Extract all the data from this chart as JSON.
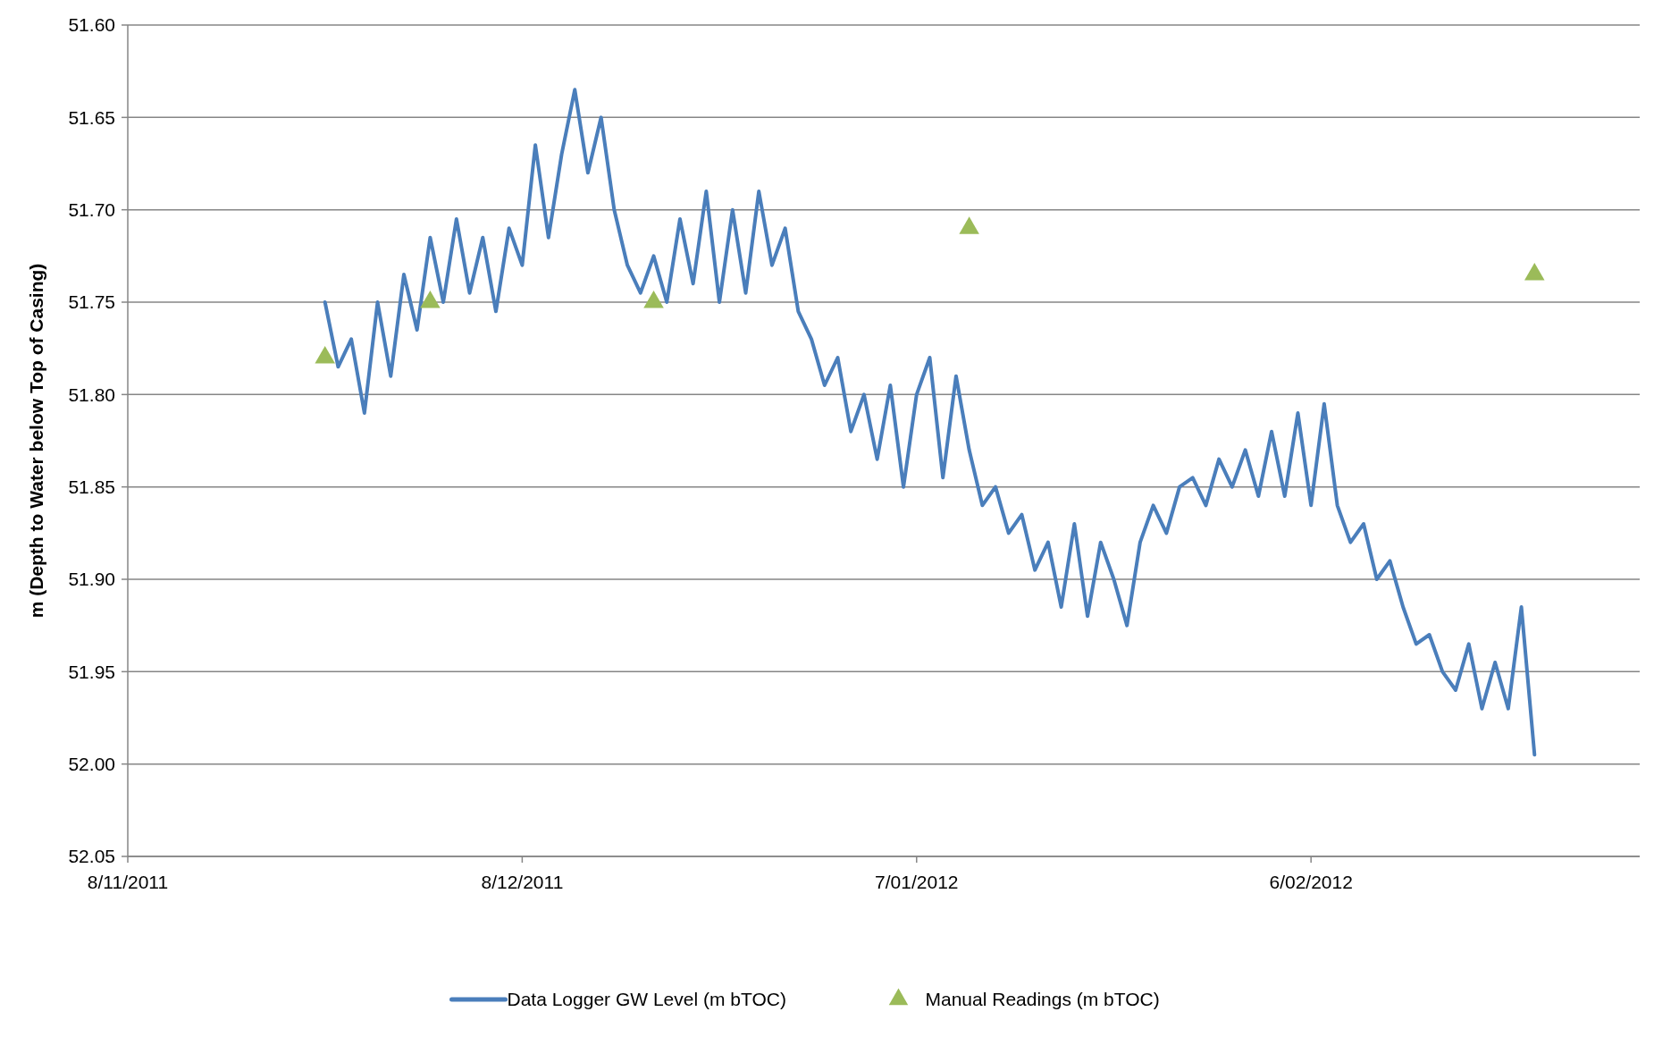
{
  "chart_data": {
    "type": "line",
    "ylabel": "m (Depth to Water below Top of Casing)",
    "xlim": [
      "2011-11-08",
      "2012-03-02"
    ],
    "xticks": [
      {
        "value": "2011-11-08",
        "label": "8/11/2011"
      },
      {
        "value": "2011-12-08",
        "label": "8/12/2011"
      },
      {
        "value": "2012-01-07",
        "label": "7/01/2012"
      },
      {
        "value": "2012-02-06",
        "label": "6/02/2012"
      }
    ],
    "ylim": [
      52.05,
      51.6
    ],
    "yticks": [
      {
        "value": 51.6,
        "label": "51.60"
      },
      {
        "value": 51.65,
        "label": "51.65"
      },
      {
        "value": 51.7,
        "label": "51.70"
      },
      {
        "value": 51.75,
        "label": "51.75"
      },
      {
        "value": 51.8,
        "label": "51.80"
      },
      {
        "value": 51.85,
        "label": "51.85"
      },
      {
        "value": 51.9,
        "label": "51.90"
      },
      {
        "value": 51.95,
        "label": "51.95"
      },
      {
        "value": 52.0,
        "label": "52.00"
      },
      {
        "value": 52.05,
        "label": "52.05"
      }
    ],
    "grid": "y",
    "legend": "bottom",
    "series": [
      {
        "name": "Data Logger GW Level (m bTOC)",
        "color": "#4a7ebb",
        "marker": "none",
        "line_style": "solid",
        "x": [
          "2011-11-23",
          "2011-11-24",
          "2011-11-25",
          "2011-11-26",
          "2011-11-27",
          "2011-11-28",
          "2011-11-29",
          "2011-11-30",
          "2011-12-01",
          "2011-12-02",
          "2011-12-03",
          "2011-12-04",
          "2011-12-05",
          "2011-12-06",
          "2011-12-07",
          "2011-12-08",
          "2011-12-09",
          "2011-12-10",
          "2011-12-11",
          "2011-12-12",
          "2011-12-13",
          "2011-12-14",
          "2011-12-15",
          "2011-12-16",
          "2011-12-17",
          "2011-12-18",
          "2011-12-19",
          "2011-12-20",
          "2011-12-21",
          "2011-12-22",
          "2011-12-23",
          "2011-12-24",
          "2011-12-25",
          "2011-12-26",
          "2011-12-27",
          "2011-12-28",
          "2011-12-29",
          "2011-12-30",
          "2011-12-31",
          "2012-01-01",
          "2012-01-02",
          "2012-01-03",
          "2012-01-04",
          "2012-01-05",
          "2012-01-06",
          "2012-01-07",
          "2012-01-08",
          "2012-01-09",
          "2012-01-10",
          "2012-01-11",
          "2012-01-12",
          "2012-01-13",
          "2012-01-14",
          "2012-01-15",
          "2012-01-16",
          "2012-01-17",
          "2012-01-18",
          "2012-01-19",
          "2012-01-20",
          "2012-01-21",
          "2012-01-22",
          "2012-01-23",
          "2012-01-24",
          "2012-01-25",
          "2012-01-26",
          "2012-01-27",
          "2012-01-28",
          "2012-01-29",
          "2012-01-30",
          "2012-01-31",
          "2012-02-01",
          "2012-02-02",
          "2012-02-03",
          "2012-02-04",
          "2012-02-05",
          "2012-02-06",
          "2012-02-07",
          "2012-02-08",
          "2012-02-09",
          "2012-02-10",
          "2012-02-11",
          "2012-02-12",
          "2012-02-13",
          "2012-02-14",
          "2012-02-15",
          "2012-02-16",
          "2012-02-17",
          "2012-02-18",
          "2012-02-19",
          "2012-02-20",
          "2012-02-21",
          "2012-02-22",
          "2012-02-23"
        ],
        "values": [
          51.75,
          51.785,
          51.77,
          51.81,
          51.75,
          51.79,
          51.735,
          51.765,
          51.715,
          51.75,
          51.705,
          51.745,
          51.715,
          51.755,
          51.71,
          51.73,
          51.665,
          51.715,
          51.67,
          51.635,
          51.68,
          51.65,
          51.7,
          51.73,
          51.745,
          51.725,
          51.75,
          51.705,
          51.74,
          51.69,
          51.75,
          51.7,
          51.745,
          51.69,
          51.73,
          51.71,
          51.755,
          51.77,
          51.795,
          51.78,
          51.82,
          51.8,
          51.835,
          51.795,
          51.85,
          51.8,
          51.78,
          51.845,
          51.79,
          51.83,
          51.86,
          51.85,
          51.875,
          51.865,
          51.895,
          51.88,
          51.915,
          51.87,
          51.92,
          51.88,
          51.9,
          51.925,
          51.88,
          51.86,
          51.875,
          51.85,
          51.845,
          51.86,
          51.835,
          51.85,
          51.83,
          51.855,
          51.82,
          51.855,
          51.81,
          51.86,
          51.805,
          51.86,
          51.88,
          51.87,
          51.9,
          51.89,
          51.915,
          51.935,
          51.93,
          51.95,
          51.96,
          51.935,
          51.97,
          51.945,
          51.97,
          51.915,
          51.995
        ]
      },
      {
        "name": "Manual Readings (m bTOC)",
        "type": "scatter",
        "color": "#9bbb59",
        "marker": "triangle",
        "x": [
          "2011-11-23",
          "2011-12-01",
          "2011-12-18",
          "2012-01-11",
          "2012-02-23"
        ],
        "values": [
          51.78,
          51.75,
          51.75,
          51.71,
          51.735
        ]
      }
    ]
  }
}
